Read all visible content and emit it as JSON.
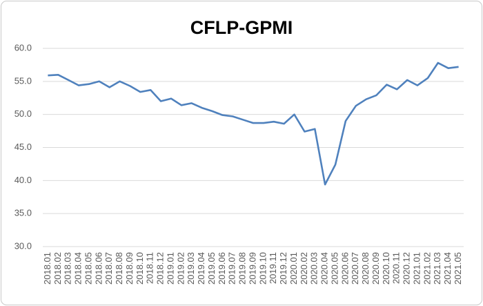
{
  "chart_data": {
    "type": "line",
    "title": "CFLP-GPMI",
    "categories": [
      "2018.01",
      "2018.02",
      "2018.03",
      "2018.04",
      "2018.05",
      "2018.06",
      "2018.07",
      "2018.08",
      "2018.09",
      "2018.10",
      "2018.11",
      "2018.12",
      "2019.01",
      "2019.02",
      "2019.03",
      "2019.04",
      "2019.05",
      "2019.06",
      "2019.07",
      "2019.08",
      "2019.09",
      "2019.10",
      "2019.11",
      "2019.12",
      "2020.01",
      "2020.02",
      "2020.03",
      "2020.04",
      "2020.05",
      "2020.06",
      "2020.07",
      "2020.08",
      "2020.09",
      "2020.10",
      "2020.11",
      "2020.12",
      "2021.01",
      "2021.02",
      "2021.03",
      "2021.04",
      "2021.05"
    ],
    "values": [
      55.9,
      56.0,
      55.2,
      54.4,
      54.6,
      55.0,
      54.1,
      55.0,
      54.3,
      53.4,
      53.7,
      52.0,
      52.4,
      51.4,
      51.7,
      51.0,
      50.5,
      49.9,
      49.7,
      49.2,
      48.7,
      48.7,
      48.9,
      48.6,
      50.0,
      47.4,
      47.8,
      39.4,
      42.4,
      49.0,
      51.3,
      52.3,
      52.9,
      54.5,
      53.8,
      55.2,
      54.4,
      55.5,
      57.8,
      57.0,
      57.2
    ],
    "color": "#4f81bd",
    "ylim": [
      30,
      60
    ],
    "yticks": [
      {
        "value": 30,
        "label": "30.0"
      },
      {
        "value": 35,
        "label": "35.0"
      },
      {
        "value": 40,
        "label": "40.0"
      },
      {
        "value": 45,
        "label": "45.0"
      },
      {
        "value": 50,
        "label": "50.0"
      },
      {
        "value": 55,
        "label": "55.0"
      },
      {
        "value": 60,
        "label": "60.0"
      }
    ],
    "grid": true
  }
}
